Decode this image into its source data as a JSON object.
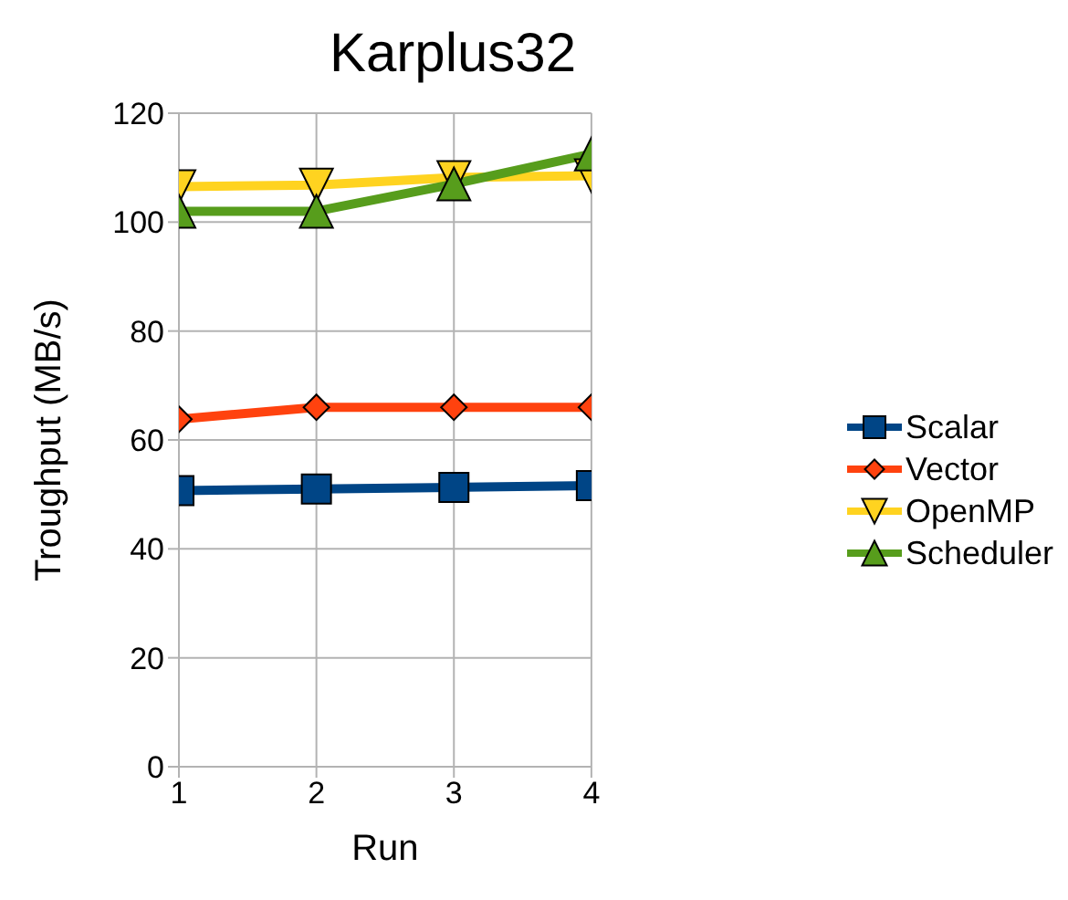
{
  "chart_data": {
    "type": "line",
    "title": "Karplus32",
    "xlabel": "Run",
    "ylabel": "Troughput (MB/s)",
    "x": [
      1,
      2,
      3,
      4
    ],
    "xlim": [
      1,
      4
    ],
    "xticks": [
      1,
      2,
      3,
      4
    ],
    "ylim": [
      0,
      120
    ],
    "yticks": [
      0,
      20,
      40,
      60,
      80,
      100,
      120
    ],
    "grid": true,
    "legend": "right",
    "line_style": "solid",
    "series": [
      {
        "name": "Scalar",
        "color": "#004586",
        "marker": "square",
        "values": [
          50.7,
          51,
          51.3,
          51.6
        ]
      },
      {
        "name": "Vector",
        "color": "#ff420e",
        "marker": "diamond",
        "values": [
          63.8,
          66,
          66,
          66
        ]
      },
      {
        "name": "OpenMP",
        "color": "#ffd320",
        "marker": "triangle-down",
        "values": [
          106.5,
          106.8,
          108.2,
          108.5
        ]
      },
      {
        "name": "Scheduler",
        "color": "#579d1c",
        "marker": "triangle",
        "values": [
          102,
          102,
          107,
          112.5
        ]
      }
    ]
  }
}
